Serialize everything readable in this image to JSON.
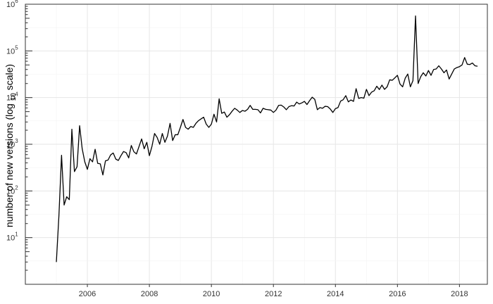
{
  "chart_data": {
    "type": "line",
    "title": "",
    "xlabel": "",
    "ylabel_parts": {
      "before": "number of new versions (log",
      "subscript": "10",
      "after": " scale)"
    },
    "y_scale": "log10",
    "ylim": [
      1,
      1000000
    ],
    "xlim": [
      2004.0,
      2018.9
    ],
    "x_tick_labels": [
      "2006",
      "2008",
      "2010",
      "2012",
      "2014",
      "2016",
      "2018"
    ],
    "x_ticks": [
      2006,
      2008,
      2010,
      2012,
      2014,
      2016,
      2018
    ],
    "y_ticks": [
      {
        "base": "10",
        "exp": "1",
        "value": 10
      },
      {
        "base": "10",
        "exp": "2",
        "value": 100
      },
      {
        "base": "10",
        "exp": "3",
        "value": 1000
      },
      {
        "base": "10",
        "exp": "4",
        "value": 10000
      },
      {
        "base": "10",
        "exp": "5",
        "value": 100000
      },
      {
        "base": "10",
        "exp": "6",
        "value": 1000000
      }
    ],
    "grid": true,
    "line_color": "#000000",
    "series": [
      {
        "x": [
          2005.0,
          2005.083,
          2005.167,
          2005.25,
          2005.333,
          2005.417,
          2005.5,
          2005.583,
          2005.667,
          2005.75,
          2005.833,
          2005.917,
          2006.0,
          2006.083,
          2006.167,
          2006.25,
          2006.333,
          2006.417,
          2006.5,
          2006.583,
          2006.667,
          2006.75,
          2006.833,
          2006.917,
          2007.0,
          2007.083,
          2007.167,
          2007.25,
          2007.333,
          2007.417,
          2007.5,
          2007.583,
          2007.667,
          2007.75,
          2007.833,
          2007.917,
          2008.0,
          2008.083,
          2008.167,
          2008.25,
          2008.333,
          2008.417,
          2008.5,
          2008.583,
          2008.667,
          2008.75,
          2008.833,
          2008.917,
          2009.0,
          2009.083,
          2009.167,
          2009.25,
          2009.333,
          2009.417,
          2009.5,
          2009.583,
          2009.667,
          2009.75,
          2009.833,
          2009.917,
          2010.0,
          2010.083,
          2010.167,
          2010.25,
          2010.333,
          2010.417,
          2010.5,
          2010.583,
          2010.667,
          2010.75,
          2010.833,
          2010.917,
          2011.0,
          2011.083,
          2011.167,
          2011.25,
          2011.333,
          2011.417,
          2011.5,
          2011.583,
          2011.667,
          2011.75,
          2011.833,
          2011.917,
          2012.0,
          2012.083,
          2012.167,
          2012.25,
          2012.333,
          2012.417,
          2012.5,
          2012.583,
          2012.667,
          2012.75,
          2012.833,
          2012.917,
          2013.0,
          2013.083,
          2013.167,
          2013.25,
          2013.333,
          2013.417,
          2013.5,
          2013.583,
          2013.667,
          2013.75,
          2013.833,
          2013.917,
          2014.0,
          2014.083,
          2014.167,
          2014.25,
          2014.333,
          2014.417,
          2014.5,
          2014.583,
          2014.667,
          2014.75,
          2014.833,
          2014.917,
          2015.0,
          2015.083,
          2015.167,
          2015.25,
          2015.333,
          2015.417,
          2015.5,
          2015.583,
          2015.667,
          2015.75,
          2015.833,
          2015.917,
          2016.0,
          2016.083,
          2016.167,
          2016.25,
          2016.333,
          2016.417,
          2016.5,
          2016.583,
          2016.667,
          2016.75,
          2016.833,
          2016.917,
          2017.0,
          2017.083,
          2017.167,
          2017.25,
          2017.333,
          2017.417,
          2017.5,
          2017.583,
          2017.667,
          2017.75,
          2017.833,
          2017.917,
          2018.0,
          2018.083,
          2018.167,
          2018.25,
          2018.333,
          2018.417,
          2018.5,
          2018.583
        ],
        "y": [
          3,
          30,
          580,
          50,
          75,
          65,
          2100,
          260,
          330,
          2500,
          800,
          420,
          290,
          490,
          420,
          780,
          390,
          380,
          220,
          440,
          460,
          590,
          650,
          480,
          450,
          570,
          700,
          660,
          510,
          940,
          690,
          620,
          900,
          1300,
          800,
          1100,
          570,
          900,
          1700,
          1400,
          1000,
          1700,
          1100,
          1500,
          2800,
          1200,
          1600,
          1600,
          2300,
          3400,
          2300,
          2100,
          2400,
          2300,
          2800,
          3200,
          3500,
          3800,
          2700,
          2300,
          2700,
          4400,
          3000,
          9400,
          4600,
          4900,
          3800,
          4300,
          5100,
          5900,
          5400,
          4800,
          5300,
          5100,
          5600,
          6800,
          5600,
          5600,
          5500,
          4700,
          5900,
          5600,
          5500,
          5400,
          4800,
          5400,
          6800,
          6900,
          6300,
          5500,
          6400,
          6700,
          6600,
          8000,
          7300,
          7700,
          8300,
          7100,
          8600,
          10200,
          9200,
          5500,
          6100,
          5900,
          6500,
          6400,
          5700,
          4800,
          5800,
          6100,
          8400,
          9000,
          11000,
          8100,
          8900,
          8300,
          15500,
          9600,
          10000,
          9700,
          15000,
          11000,
          13100,
          14000,
          17500,
          14900,
          18500,
          15000,
          17000,
          24000,
          23500,
          26500,
          30000,
          19500,
          17000,
          26000,
          32000,
          17000,
          23000,
          560000,
          20000,
          28000,
          34000,
          29000,
          38000,
          30000,
          40000,
          41000,
          48000,
          41000,
          34000,
          39000,
          25000,
          32000,
          41000,
          44000,
          46000,
          50000,
          72000,
          52000,
          51000,
          55000,
          48000,
          47000
        ]
      }
    ]
  }
}
